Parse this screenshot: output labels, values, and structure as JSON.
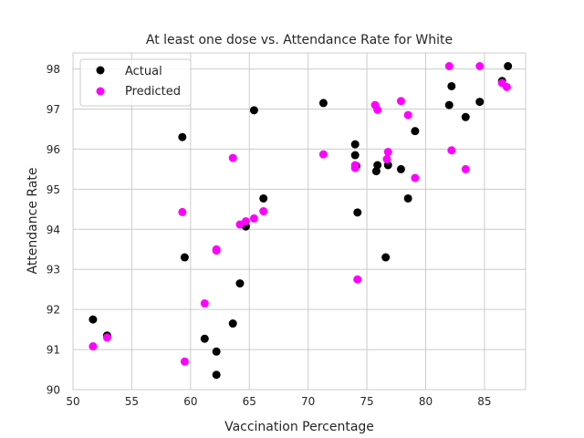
{
  "chart_data": {
    "type": "scatter",
    "title": "At least one dose vs. Attendance Rate for White",
    "xlabel": "Vaccination Percentage",
    "ylabel": "Attendance Rate",
    "xlim": [
      50,
      88.5
    ],
    "ylim": [
      90,
      98.4
    ],
    "xticks": [
      50,
      55,
      60,
      65,
      70,
      75,
      80,
      85
    ],
    "yticks": [
      90,
      91,
      92,
      93,
      94,
      95,
      96,
      97,
      98
    ],
    "grid": true,
    "legend_position": "top-left",
    "series": [
      {
        "name": "Actual",
        "color": "#000000",
        "points": [
          [
            51.7,
            91.75
          ],
          [
            52.9,
            91.35
          ],
          [
            59.3,
            96.3
          ],
          [
            59.5,
            93.3
          ],
          [
            61.2,
            91.27
          ],
          [
            62.2,
            90.95
          ],
          [
            62.2,
            90.37
          ],
          [
            63.6,
            91.65
          ],
          [
            64.2,
            92.65
          ],
          [
            64.7,
            94.07
          ],
          [
            65.4,
            96.97
          ],
          [
            66.2,
            94.77
          ],
          [
            71.3,
            97.15
          ],
          [
            74.0,
            96.12
          ],
          [
            74.0,
            95.85
          ],
          [
            74.1,
            95.58
          ],
          [
            74.2,
            94.42
          ],
          [
            75.8,
            95.45
          ],
          [
            75.9,
            95.6
          ],
          [
            76.6,
            93.3
          ],
          [
            76.8,
            95.6
          ],
          [
            77.9,
            95.5
          ],
          [
            78.5,
            94.77
          ],
          [
            79.1,
            96.45
          ],
          [
            82.0,
            97.1
          ],
          [
            82.2,
            97.57
          ],
          [
            83.4,
            96.8
          ],
          [
            84.6,
            97.18
          ],
          [
            86.5,
            97.7
          ],
          [
            87.0,
            98.07
          ]
        ]
      },
      {
        "name": "Predicted",
        "color": "#ff00ff",
        "points": [
          [
            51.7,
            91.08
          ],
          [
            52.9,
            91.3
          ],
          [
            59.3,
            94.43
          ],
          [
            59.5,
            90.7
          ],
          [
            61.2,
            92.15
          ],
          [
            62.2,
            93.5
          ],
          [
            62.2,
            93.47
          ],
          [
            63.6,
            95.78
          ],
          [
            64.2,
            94.12
          ],
          [
            64.7,
            94.2
          ],
          [
            65.4,
            94.27
          ],
          [
            66.2,
            94.45
          ],
          [
            71.3,
            95.87
          ],
          [
            74.0,
            95.53
          ],
          [
            74.0,
            95.6
          ],
          [
            74.2,
            92.75
          ],
          [
            75.7,
            97.1
          ],
          [
            75.9,
            96.98
          ],
          [
            76.7,
            95.75
          ],
          [
            76.8,
            95.93
          ],
          [
            77.9,
            97.2
          ],
          [
            78.5,
            96.85
          ],
          [
            79.1,
            95.28
          ],
          [
            82.0,
            98.07
          ],
          [
            82.2,
            95.97
          ],
          [
            83.4,
            95.5
          ],
          [
            84.6,
            98.07
          ],
          [
            86.5,
            97.65
          ],
          [
            86.9,
            97.55
          ]
        ]
      }
    ]
  }
}
